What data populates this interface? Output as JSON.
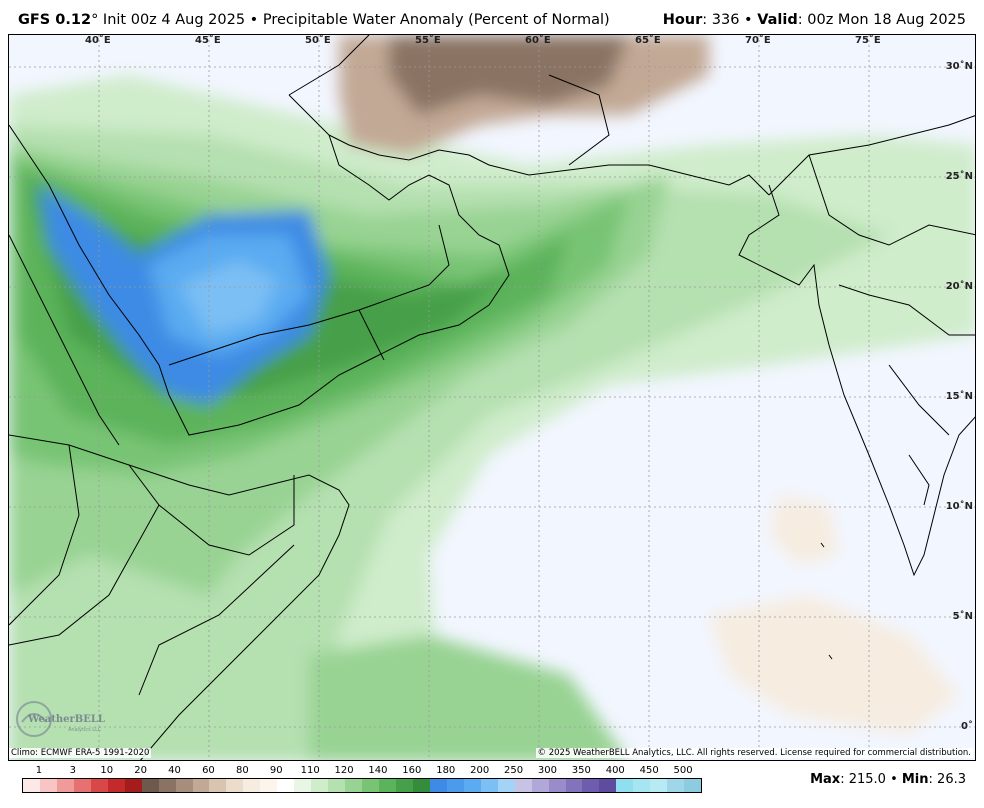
{
  "header": {
    "model": "GFS 0.12",
    "degree": "°",
    "init": " Init 00z 4 Aug 2025 • Precipitable Water Anomaly (Percent of Normal)",
    "hour_label": "Hour",
    "hour_value": ": 336 • ",
    "valid_label": "Valid",
    "valid_value": ": 00z Mon 18 Aug 2025"
  },
  "map": {
    "lon_labels": [
      "40˚E",
      "45˚E",
      "50˚E",
      "55˚E",
      "60˚E",
      "65˚E",
      "70˚E",
      "75˚E"
    ],
    "lat_labels": [
      "30˚N",
      "25˚N",
      "20˚N",
      "15˚N",
      "10˚N",
      "5˚N",
      "0˚"
    ],
    "climo": "Climo: ECMWF ERA-5 1991-2020",
    "copyright": "© 2025 WeatherBELL Analytics, LLC. All rights reserved. License required for commercial distribution.",
    "logo_text": "WeatherBELL",
    "logo_sub": "Analytics LLC"
  },
  "colorbar": {
    "labels": [
      "1",
      "3",
      "10",
      "20",
      "40",
      "60",
      "80",
      "90",
      "110",
      "120",
      "140",
      "160",
      "180",
      "200",
      "250",
      "300",
      "350",
      "400",
      "450",
      "500"
    ],
    "colors": [
      "#fde8e8",
      "#f8c4c4",
      "#f09a9a",
      "#e77070",
      "#d94848",
      "#c42a2a",
      "#a51c1c",
      "#6e5a4c",
      "#8a7363",
      "#a68d7c",
      "#c2a995",
      "#d9c4b0",
      "#ecdccb",
      "#f6ece0",
      "#fbf5ec",
      "#ffffff",
      "#e9f6e6",
      "#cfeccb",
      "#b5e0b0",
      "#98d393",
      "#78c474",
      "#5bb35a",
      "#46a04a",
      "#348c3d",
      "#3d8be4",
      "#4a9bec",
      "#5aabf1",
      "#7cbff4",
      "#a3d3f6",
      "#c6c3e4",
      "#b0a8d8",
      "#9a8ccb",
      "#8373bd",
      "#6e5cae",
      "#5f4ca0",
      "#8fdff0",
      "#a5e6f2",
      "#b7eaf3",
      "#9fd6e8",
      "#8ccbe0"
    ]
  },
  "maxmin": {
    "max_label": "Max",
    "max_value": ": 215.0 • ",
    "min_label": "Min",
    "min_value": ": 26.3"
  }
}
